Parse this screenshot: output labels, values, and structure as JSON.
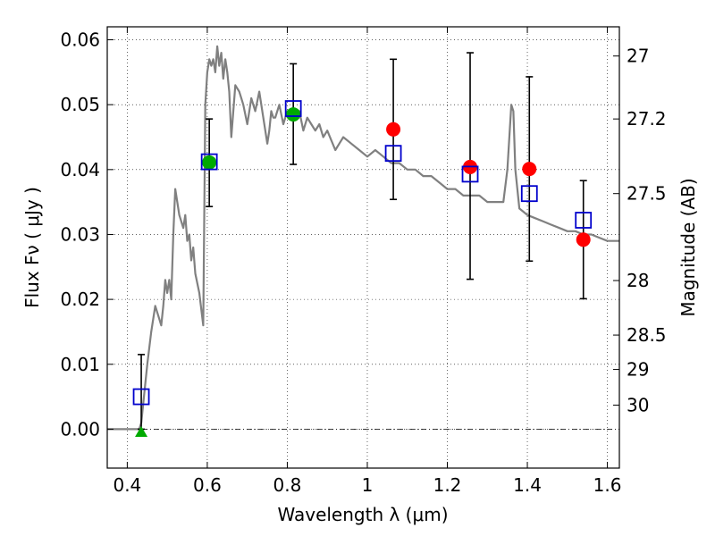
{
  "chart_data": {
    "type": "scatter",
    "xlabel": "Wavelength  λ (μm)",
    "ylabel": "Flux  Fν  ( μJy )",
    "y2label": "Magnitude (AB)",
    "xlim": [
      0.35,
      1.63
    ],
    "ylim": [
      -0.006,
      0.062
    ],
    "grid": true,
    "x_ticks": [
      0.4,
      0.6,
      0.8,
      1.0,
      1.2,
      1.4,
      1.6
    ],
    "x_tick_labels": [
      "0.4",
      "0.6",
      "0.8",
      "1",
      "1.2",
      "1.4",
      "1.6"
    ],
    "y_ticks": [
      0.0,
      0.01,
      0.02,
      0.03,
      0.04,
      0.05,
      0.06
    ],
    "y_tick_labels": [
      "0.00",
      "0.01",
      "0.02",
      "0.03",
      "0.04",
      "0.05",
      "0.06"
    ],
    "mag_ticks": [
      {
        "label": "27",
        "flux": 0.0575
      },
      {
        "label": "27.2",
        "flux": 0.0478
      },
      {
        "label": "27.5",
        "flux": 0.0363
      },
      {
        "label": "28",
        "flux": 0.0229
      },
      {
        "label": "28.5",
        "flux": 0.0145
      },
      {
        "label": "29",
        "flux": 0.0092
      },
      {
        "label": "30",
        "flux": 0.0037
      }
    ],
    "model_color": "#808080",
    "observed_color": "#ff0000",
    "detection_color": "#00aa00",
    "upper_limit_color": "#00aa00",
    "model_flux_color": "#0000cc",
    "errorbar_color": "#000000",
    "model_spectrum": {
      "x": [
        0.35,
        0.43,
        0.435,
        0.44,
        0.45,
        0.46,
        0.47,
        0.48,
        0.485,
        0.49,
        0.495,
        0.5,
        0.505,
        0.51,
        0.515,
        0.52,
        0.53,
        0.54,
        0.545,
        0.55,
        0.555,
        0.56,
        0.565,
        0.57,
        0.58,
        0.59,
        0.595,
        0.6,
        0.605,
        0.61,
        0.615,
        0.62,
        0.625,
        0.63,
        0.635,
        0.64,
        0.645,
        0.65,
        0.655,
        0.66,
        0.67,
        0.68,
        0.685,
        0.69,
        0.7,
        0.71,
        0.72,
        0.73,
        0.74,
        0.75,
        0.755,
        0.76,
        0.765,
        0.77,
        0.78,
        0.79,
        0.8,
        0.81,
        0.82,
        0.83,
        0.84,
        0.85,
        0.86,
        0.87,
        0.88,
        0.89,
        0.9,
        0.92,
        0.94,
        0.96,
        0.98,
        1.0,
        1.02,
        1.04,
        1.06,
        1.08,
        1.1,
        1.12,
        1.14,
        1.16,
        1.18,
        1.2,
        1.22,
        1.24,
        1.26,
        1.28,
        1.3,
        1.32,
        1.34,
        1.35,
        1.36,
        1.365,
        1.37,
        1.38,
        1.39,
        1.4,
        1.42,
        1.44,
        1.46,
        1.48,
        1.5,
        1.52,
        1.54,
        1.56,
        1.58,
        1.6,
        1.63
      ],
      "y": [
        0.0,
        0.0,
        0.001,
        0.004,
        0.01,
        0.015,
        0.019,
        0.017,
        0.016,
        0.019,
        0.023,
        0.021,
        0.023,
        0.02,
        0.03,
        0.037,
        0.033,
        0.031,
        0.033,
        0.029,
        0.03,
        0.026,
        0.028,
        0.024,
        0.021,
        0.016,
        0.05,
        0.055,
        0.057,
        0.056,
        0.057,
        0.055,
        0.059,
        0.056,
        0.058,
        0.054,
        0.057,
        0.055,
        0.052,
        0.045,
        0.053,
        0.052,
        0.051,
        0.05,
        0.047,
        0.051,
        0.049,
        0.052,
        0.048,
        0.044,
        0.046,
        0.049,
        0.048,
        0.048,
        0.05,
        0.047,
        0.049,
        0.048,
        0.048,
        0.049,
        0.046,
        0.048,
        0.047,
        0.046,
        0.047,
        0.045,
        0.046,
        0.043,
        0.045,
        0.044,
        0.043,
        0.042,
        0.043,
        0.042,
        0.041,
        0.041,
        0.04,
        0.04,
        0.039,
        0.039,
        0.038,
        0.037,
        0.037,
        0.036,
        0.036,
        0.036,
        0.035,
        0.035,
        0.035,
        0.04,
        0.05,
        0.049,
        0.04,
        0.034,
        0.0335,
        0.033,
        0.0325,
        0.032,
        0.0315,
        0.031,
        0.0305,
        0.0305,
        0.03,
        0.03,
        0.0295,
        0.029,
        0.029
      ]
    },
    "observed_points": [
      {
        "x": 1.065,
        "y": 0.0462
      },
      {
        "x": 1.257,
        "y": 0.0404
      },
      {
        "x": 1.405,
        "y": 0.0401
      },
      {
        "x": 1.54,
        "y": 0.0292
      }
    ],
    "detection_points": [
      {
        "x": 0.605,
        "y": 0.0411
      },
      {
        "x": 0.815,
        "y": 0.0485
      }
    ],
    "upper_limit_points": [
      {
        "x": 0.435,
        "y": -0.0005
      }
    ],
    "model_fluxes": [
      {
        "x": 0.435,
        "y": 0.005
      },
      {
        "x": 0.605,
        "y": 0.0412
      },
      {
        "x": 0.815,
        "y": 0.0494
      },
      {
        "x": 1.065,
        "y": 0.0425
      },
      {
        "x": 1.257,
        "y": 0.0393
      },
      {
        "x": 1.405,
        "y": 0.0363
      },
      {
        "x": 1.54,
        "y": 0.0322
      }
    ],
    "error_bars": [
      {
        "x": 0.435,
        "low": 0.0,
        "high": 0.0115
      },
      {
        "x": 0.605,
        "low": 0.0343,
        "high": 0.0478
      },
      {
        "x": 0.815,
        "low": 0.0408,
        "high": 0.0563
      },
      {
        "x": 1.065,
        "low": 0.0354,
        "high": 0.057
      },
      {
        "x": 1.257,
        "low": 0.0231,
        "high": 0.058
      },
      {
        "x": 1.405,
        "low": 0.0259,
        "high": 0.0543
      },
      {
        "x": 1.54,
        "low": 0.0201,
        "high": 0.0383
      }
    ]
  }
}
